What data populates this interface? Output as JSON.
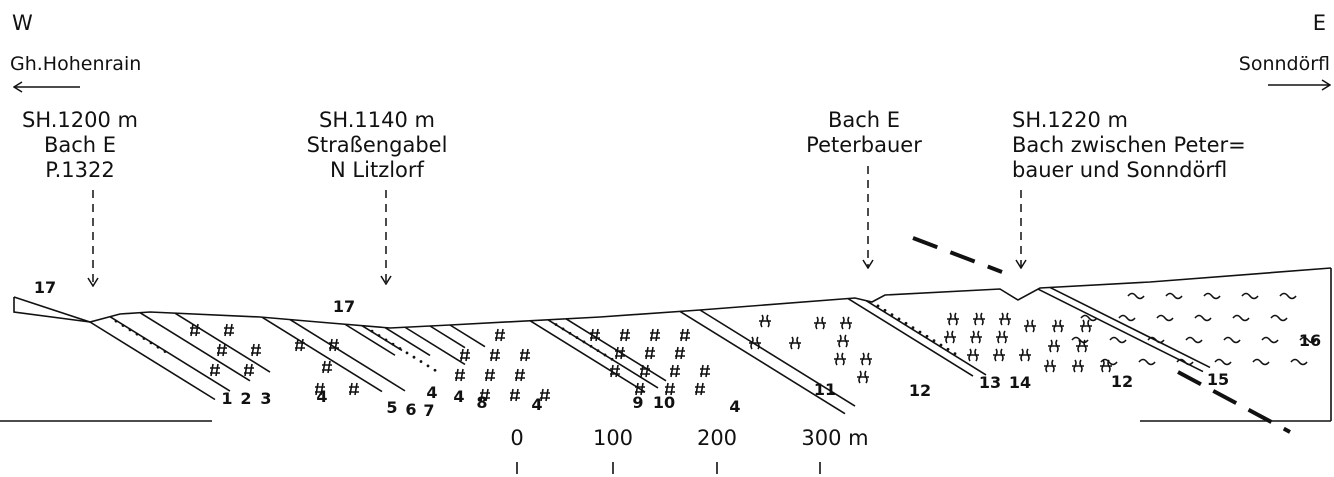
{
  "orientation": {
    "west": "W",
    "east": "E"
  },
  "directions": {
    "west": "Gh.Hohenrain",
    "east": "Sonndörfl"
  },
  "locations": [
    {
      "lines": [
        "SH.1200 m",
        "Bach E",
        "P.1322"
      ]
    },
    {
      "lines": [
        "SH.1140 m",
        "Straßengabel",
        "N Litzlorf"
      ]
    },
    {
      "lines": [
        "Bach E",
        "Peterbauer"
      ]
    },
    {
      "lines": [
        "SH.1220 m",
        "Bach zwischen Peter=",
        "bauer und Sonndörfl"
      ]
    }
  ],
  "unit_labels": [
    "17",
    "17",
    "1",
    "2",
    "3",
    "4",
    "5",
    "6",
    "4",
    "7",
    "4",
    "8",
    "4",
    "9",
    "10",
    "4",
    "11",
    "12",
    "13",
    "14",
    "12",
    "15",
    "16"
  ],
  "scale": {
    "labels": [
      "0",
      "100",
      "200",
      "300 m"
    ]
  }
}
